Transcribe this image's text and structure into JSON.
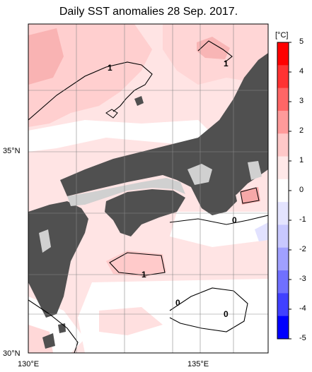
{
  "title": "Daily SST anomalies 28 Sep. 2017.",
  "axes": {
    "lat_labels": [
      "35°N",
      "30°N"
    ],
    "lon_labels": [
      "130°E",
      "135°E"
    ]
  },
  "colorbar": {
    "unit": "[°C]",
    "labels": [
      "5",
      "4",
      "3",
      "2",
      "1",
      "0",
      "-1",
      "-2",
      "-3",
      "-4",
      "-5"
    ],
    "colors": [
      "#ff0000",
      "#ff3333",
      "#ff6666",
      "#ff9a9a",
      "#ffc8c8",
      "#ffe8e8",
      "#ffffff",
      "#e4e4ff",
      "#c8c8ff",
      "#a0a0ff",
      "#7070ff",
      "#4040ff",
      "#0000ff"
    ]
  },
  "contour_labels": [
    {
      "text": "1"
    },
    {
      "text": "1"
    },
    {
      "text": "0"
    },
    {
      "text": "1"
    },
    {
      "text": "0"
    },
    {
      "text": "0"
    }
  ],
  "colors": {
    "land": "#505050",
    "lake": "#d0d0d0",
    "warm_light": "#ffe6e6",
    "warm_mid": "#ffcccc",
    "warm_strong": "#f8a8a8",
    "neutral": "#ffffff",
    "cool": "#e0e0ff"
  }
}
